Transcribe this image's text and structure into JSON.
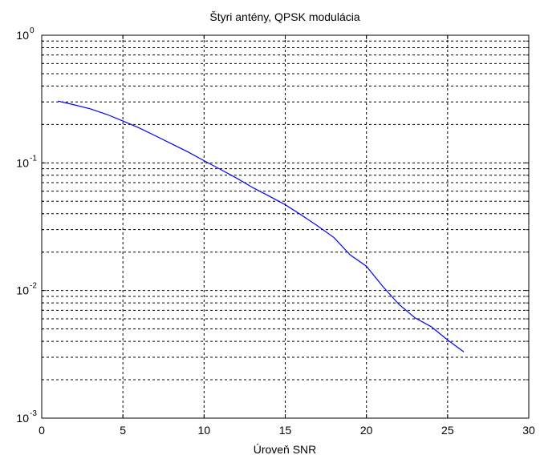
{
  "chart_data": {
    "type": "line",
    "title": "Štyri antény, QPSK modulácia",
    "xlabel": "Úroveň SNR",
    "ylabel": "",
    "x_scale": "linear",
    "y_scale": "log",
    "xlim": [
      0,
      30
    ],
    "ylim": [
      0.001,
      1
    ],
    "x_ticks": [
      0,
      5,
      10,
      15,
      20,
      25,
      30
    ],
    "x_tick_labels": [
      "0",
      "5",
      "10",
      "15",
      "20",
      "25",
      "30"
    ],
    "y_ticks": [
      {
        "value": 1,
        "base": "10",
        "exp": "0"
      },
      {
        "value": 0.1,
        "base": "10",
        "exp": "-1"
      },
      {
        "value": 0.01,
        "base": "10",
        "exp": "-2"
      },
      {
        "value": 0.001,
        "base": "10",
        "exp": "-3"
      }
    ],
    "grid": true,
    "grid_style": "dashed",
    "grid_minor_y": true,
    "legend": "none",
    "colors": {
      "line": "#0000ff",
      "grid": "#000000",
      "axes": "#000000",
      "background": "#ffffff"
    },
    "series": [
      {
        "x": [
          1,
          2,
          3,
          4,
          5,
          6,
          7,
          8,
          9,
          10,
          11,
          12,
          13,
          14,
          15,
          16,
          17,
          18,
          19,
          20,
          21,
          22,
          23,
          24,
          25,
          26
        ],
        "y": [
          0.305,
          0.285,
          0.265,
          0.24,
          0.213,
          0.188,
          0.163,
          0.141,
          0.122,
          0.104,
          0.089,
          0.076,
          0.064,
          0.055,
          0.047,
          0.039,
          0.032,
          0.026,
          0.019,
          0.0155,
          0.0108,
          0.0078,
          0.0061,
          0.0052,
          0.0041,
          0.0033
        ]
      }
    ]
  }
}
